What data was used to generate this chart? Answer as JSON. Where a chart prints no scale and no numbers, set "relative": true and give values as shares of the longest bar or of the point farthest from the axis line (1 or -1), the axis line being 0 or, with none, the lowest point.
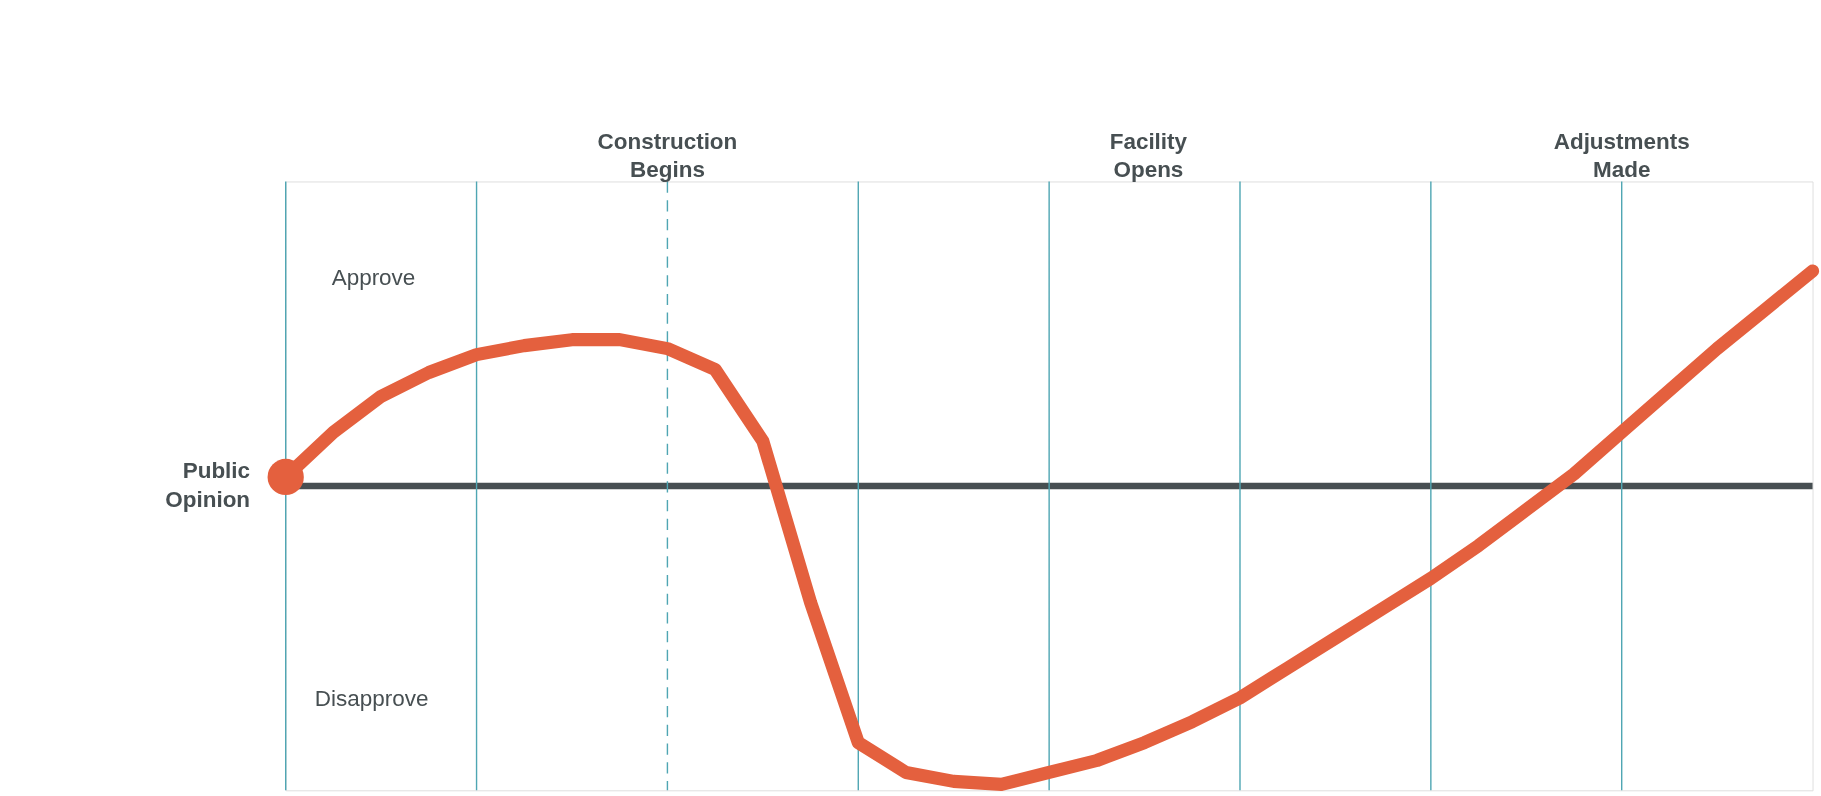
{
  "chart_data": {
    "type": "line",
    "relative": true,
    "ylabel": "Public Opinion",
    "categories": [
      null,
      null,
      null,
      null,
      null,
      null,
      null,
      null,
      null,
      null,
      null,
      null,
      null,
      null,
      null,
      null,
      null,
      null,
      null,
      null,
      null,
      null,
      null,
      null,
      null,
      null,
      null,
      null,
      null,
      null,
      null,
      null,
      null
    ],
    "series": [
      {
        "color": "#e4603e",
        "values": [
          0.03,
          0.18,
          0.3,
          0.38,
          0.44,
          0.47,
          0.49,
          0.49,
          0.46,
          0.39,
          0.15,
          -0.39,
          -0.86,
          -0.96,
          -0.99,
          -1,
          -0.96,
          -0.92,
          -0.86,
          -0.79,
          -0.71,
          -0.61,
          -0.51,
          -0.41,
          -0.31,
          -0.2,
          -0.08,
          0.04,
          0.18,
          0.32,
          0.46,
          0.59,
          0.72
        ]
      }
    ],
    "grid": "x",
    "tick_labels": false,
    "annotations": [
      "Construction Begins",
      "Facility Opens",
      "Adjustments Made",
      "Approve",
      "Disapprove"
    ]
  }
}
